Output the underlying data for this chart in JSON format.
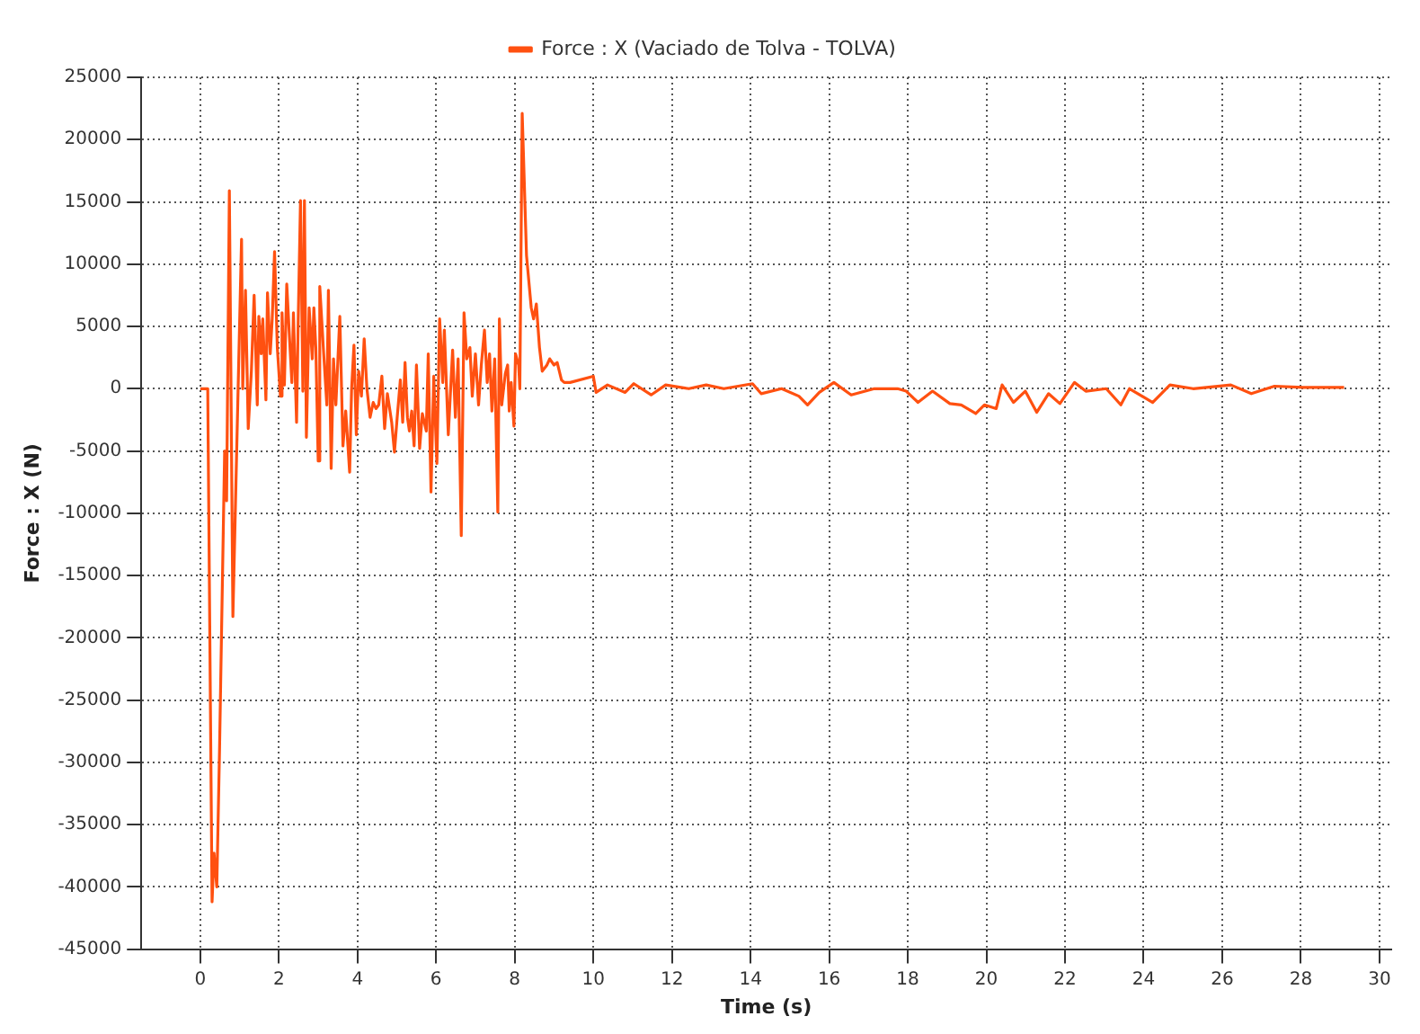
{
  "chart_data": {
    "type": "line",
    "xlabel": "Time (s)",
    "ylabel": "Force : X (N)",
    "xlim": [
      -1.5,
      30.3
    ],
    "xticks": [
      0,
      2,
      4,
      6,
      8,
      10,
      12,
      14,
      16,
      18,
      20,
      22,
      24,
      26,
      28,
      30
    ],
    "ylim": [
      -45000,
      25000
    ],
    "yticks": [
      -45000,
      -40000,
      -35000,
      -30000,
      -25000,
      -20000,
      -15000,
      -10000,
      -5000,
      0,
      5000,
      10000,
      15000,
      20000,
      25000
    ],
    "grid": true,
    "legend": "top",
    "marker": "none",
    "line_style": "solid",
    "series": [
      {
        "name": "Force : X (Vaciado de Tolva - TOLVA)",
        "color": "#ff5010",
        "x": [
          0,
          0.19,
          0.3,
          0.35,
          0.42,
          0.49,
          0.62,
          0.67,
          0.74,
          0.83,
          0.93,
          1.05,
          1.08,
          1.15,
          1.22,
          1.3,
          1.37,
          1.45,
          1.49,
          1.55,
          1.59,
          1.67,
          1.71,
          1.78,
          1.83,
          1.89,
          1.96,
          2.04,
          2.08,
          2.14,
          2.2,
          2.26,
          2.33,
          2.37,
          2.45,
          2.49,
          2.55,
          2.61,
          2.65,
          2.7,
          2.77,
          2.85,
          2.89,
          2.94,
          3.0,
          3.04,
          3.14,
          3.22,
          3.26,
          3.33,
          3.39,
          3.45,
          3.55,
          3.63,
          3.7,
          3.8,
          3.85,
          3.91,
          3.97,
          4.03,
          4.1,
          4.17,
          4.24,
          4.32,
          4.4,
          4.47,
          4.54,
          4.62,
          4.69,
          4.76,
          4.87,
          4.94,
          5.01,
          5.09,
          5.15,
          5.21,
          5.27,
          5.32,
          5.38,
          5.44,
          5.5,
          5.58,
          5.65,
          5.75,
          5.8,
          5.87,
          5.94,
          6.02,
          6.09,
          6.17,
          6.21,
          6.31,
          6.42,
          6.49,
          6.56,
          6.64,
          6.71,
          6.78,
          6.86,
          6.92,
          7.0,
          7.08,
          7.15,
          7.23,
          7.3,
          7.36,
          7.42,
          7.49,
          7.57,
          7.61,
          7.67,
          7.76,
          7.82,
          7.86,
          7.91,
          7.98,
          8.02,
          8.1,
          8.13,
          8.19,
          8.3,
          8.42,
          8.48,
          8.55,
          8.63,
          8.7,
          8.82,
          8.89,
          9.0,
          9.08,
          9.19,
          9.26,
          9.41,
          10.0,
          10.07,
          10.36,
          10.81,
          11.03,
          11.47,
          11.84,
          12.43,
          12.87,
          13.32,
          14.05,
          14.27,
          14.79,
          15.23,
          15.45,
          15.75,
          16.12,
          16.56,
          17.15,
          17.74,
          17.96,
          18.26,
          18.63,
          19.07,
          19.36,
          19.73,
          19.95,
          20.25,
          20.4,
          20.69,
          20.99,
          21.28,
          21.58,
          21.87,
          22.24,
          22.53,
          23.05,
          23.42,
          23.64,
          24.23,
          24.67,
          25.26,
          26.22,
          26.74,
          27.33,
          28.06,
          29.1
        ],
        "values": [
          0,
          0,
          -41200,
          -37300,
          -40000,
          -29000,
          -5000,
          -9000,
          15900,
          -18300,
          -4500,
          12000,
          0,
          7900,
          -3200,
          1400,
          7500,
          -1300,
          5800,
          2800,
          5600,
          -900,
          7700,
          2800,
          5600,
          11000,
          3300,
          -600,
          6100,
          300,
          8400,
          4700,
          500,
          6100,
          -2700,
          5200,
          15100,
          -200,
          15100,
          -3900,
          6500,
          2400,
          6500,
          3300,
          -5800,
          8200,
          2800,
          -1300,
          7900,
          -6400,
          2400,
          -1300,
          5800,
          -4600,
          -1800,
          -6700,
          0,
          3500,
          -3700,
          1400,
          -600,
          4000,
          0,
          -2300,
          -1100,
          -1600,
          -1300,
          1000,
          -3200,
          -400,
          -2700,
          -5100,
          -2300,
          700,
          -2700,
          2100,
          -2300,
          -3400,
          -1800,
          -4600,
          1900,
          -4800,
          -2000,
          -3400,
          2800,
          -8300,
          1000,
          -6000,
          5600,
          500,
          4700,
          -3700,
          3100,
          -2300,
          2400,
          -11800,
          6100,
          2400,
          3300,
          -600,
          2800,
          -1300,
          1900,
          4700,
          500,
          2800,
          -1800,
          2400,
          -9900,
          5600,
          -1300,
          1200,
          1900,
          -1800,
          500,
          -3000,
          2800,
          1900,
          0,
          22100,
          10700,
          6500,
          5600,
          6800,
          3300,
          1400,
          1900,
          2400,
          1900,
          2100,
          700,
          500,
          500,
          1000,
          -300,
          300,
          -300,
          400,
          -500,
          300,
          0,
          300,
          0,
          400,
          -400,
          0,
          -600,
          -1300,
          -300,
          500,
          -500,
          0,
          0,
          -200,
          -1100,
          -200,
          -1200,
          -1300,
          -2000,
          -1300,
          -1600,
          300,
          -1100,
          -200,
          -1900,
          -400,
          -1200,
          500,
          -200,
          0,
          -1300,
          0,
          -1100,
          300,
          0,
          300,
          -400,
          200,
          100,
          100
        ]
      }
    ]
  }
}
